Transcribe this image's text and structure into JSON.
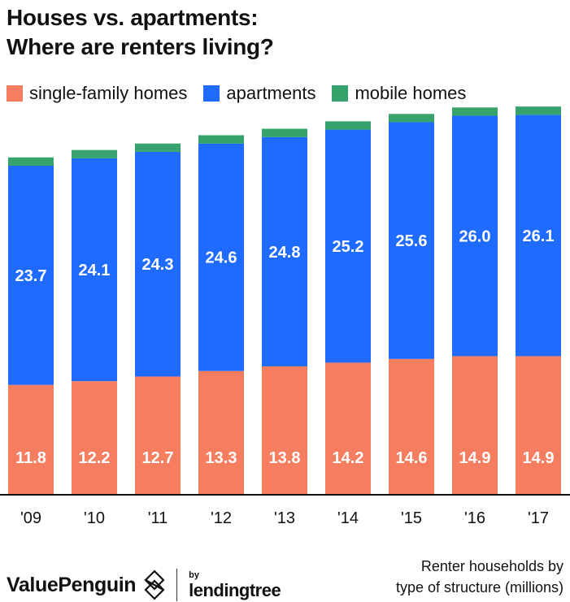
{
  "title_lines": [
    "Houses vs. apartments:",
    "Where are renters living?"
  ],
  "legend": [
    {
      "label": "single-family homes",
      "color": "#f47e5f"
    },
    {
      "label": "apartments",
      "color": "#1f6bff"
    },
    {
      "label": "mobile homes",
      "color": "#35a36b"
    }
  ],
  "chart_data": {
    "type": "bar",
    "stacked": true,
    "categories": [
      "'09",
      "'10",
      "'11",
      "'12",
      "'13",
      "'14",
      "'15",
      "'16",
      "'17"
    ],
    "series": [
      {
        "name": "single-family homes",
        "color": "#f47e5f",
        "values": [
          11.8,
          12.2,
          12.7,
          13.3,
          13.8,
          14.2,
          14.6,
          14.9,
          14.9
        ],
        "labeled": true
      },
      {
        "name": "apartments",
        "color": "#1f6bff",
        "values": [
          23.7,
          24.1,
          24.3,
          24.6,
          24.8,
          25.2,
          25.6,
          26.0,
          26.1
        ],
        "labeled": true
      },
      {
        "name": "mobile homes",
        "color": "#35a36b",
        "values": [
          0.9,
          0.9,
          0.9,
          0.9,
          0.9,
          0.9,
          0.9,
          0.9,
          0.9
        ],
        "labeled": false
      }
    ],
    "value_labels": {
      "single-family homes": [
        "11.8",
        "12.2",
        "12.7",
        "13.3",
        "13.8",
        "14.2",
        "14.6",
        "14.9",
        "14.9"
      ],
      "apartments": [
        "23.7",
        "24.1",
        "24.3",
        "24.6",
        "24.8",
        "25.2",
        "25.6",
        "26.0",
        "26.1"
      ]
    },
    "ylim": [
      0,
      42
    ],
    "grid": false,
    "legend_position": "top-left"
  },
  "footer": {
    "brand_left": "ValuePenguin",
    "brand_by": "by",
    "brand_right": "lendingtree",
    "note_lines": [
      "Renter households by",
      "type of structure (millions)"
    ]
  },
  "colors": {
    "text": "#111111",
    "axis": "#111111"
  }
}
